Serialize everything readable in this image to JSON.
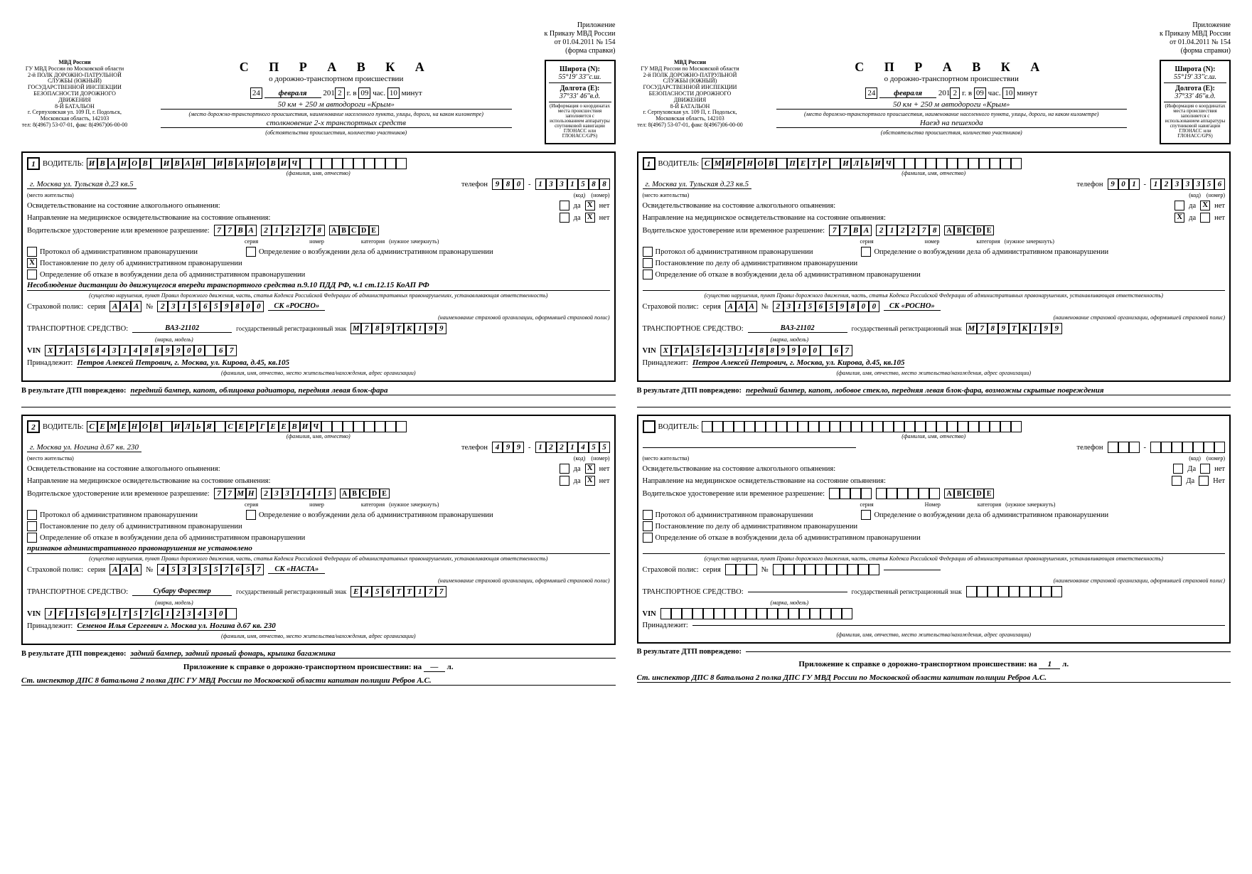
{
  "appendix": {
    "l1": "Приложение",
    "l2": "к Приказу МВД России",
    "l3": "от 01.04.2011 № 154",
    "l4": "(форма справки)"
  },
  "agency": {
    "l1": "МВД России",
    "l2": "ГУ МВД России по Московской области",
    "l3": "2-й ПОЛК ДОРОЖНО-ПАТРУЛЬНОЙ СЛУЖБЫ (ЮЖНЫЙ) ГОСУДАРСТВЕННОЙ ИНСПЕКЦИИ БЕЗОПАСНОСТИ ДОРОЖНОГО ДВИЖЕНИЯ",
    "l4": "8-Й БАТАЛЬОН",
    "l5": "г. Серпуховская ул. 109 П, г. Подольск, Московская область, 142103",
    "l6": "тел: 8(4967) 53-07-01, факс 8(4967)06-00-00"
  },
  "title": {
    "big": "С П Р А В К А",
    "sub": "о дорожно-транспортном происшествии"
  },
  "date": {
    "day": "24",
    "month": "февраля",
    "year_pref": "201",
    "year_last": "2",
    "year_lbl": "г. в",
    "hour": "09",
    "hour_lbl": "час.",
    "min": "10",
    "min_lbl": "минут"
  },
  "location": "50 км + 250 м автодороги «Крым»",
  "loc_sub": "(место дорожно-транспортного происшествия, наименование населенного пункта, улицы, дороги, на каком километре)",
  "circumstances_a": "столкновение 2-х транспортных средств",
  "circumstances_b": "Наезд на пешехода",
  "circ_sub": "(обстоятельства происшествия, количество участников)",
  "coords": {
    "lat_lbl": "Широта (N):",
    "lat": "55°19' 33''с.ш.",
    "lon_lbl": "Долгота (E):",
    "lon": "37°33' 46''в.д.",
    "note": "(Информация о координатах места происшествия заполняется с использованием аппаратуры спутниковой навигации ГЛОНАСС или ГЛОНАСС/GPS)"
  },
  "labels": {
    "driver": "ВОДИТЕЛЬ:",
    "fio_sub": "(фамилия, имя, отчество)",
    "phone": "телефон",
    "addr_sub": "(место жительства)",
    "kod": "(код)",
    "nomer": "(номер)",
    "alc1": "Освидетельствование на состояние алкогольного опьянения:",
    "alc2": "Направление на медицинское освидетельствование на состояние опьянения:",
    "da": "да",
    "net": "нет",
    "Da": "Да",
    "Net": "Нет",
    "lic": "Водительское удостоверение или временное разрешение:",
    "seria": "серия",
    "nomer2": "номер",
    "nomer2c": "Номер",
    "cat": "категория",
    "cat_sub": "(нужное зачеркнуть)",
    "p1": "Протокол об административном правонарушении",
    "p2": "Постановление по делу об административном правонарушении",
    "p3": "Определение об отказе в возбуждении дела об административном правонарушении",
    "p4": "Определение о возбуждении дела об административном правонарушении",
    "viol_sub": "(существо нарушения, пункт Правил дорожного движения, часть, статья Кодекса Российской Федерации об административных правонарушениях, устанавливающая ответственность)",
    "ins": "Страховой полис:",
    "ins_ser": "серия",
    "ins_num": "№",
    "ins_co_sub": "(наименование страховой организации, оформившей страховой полис)",
    "veh": "ТРАНСПОРТНОЕ СРЕДСТВО:",
    "veh_sub": "(марка, модель)",
    "gos": "государственный регистрационный знак",
    "vin": "VIN",
    "own": "Принадлежит:",
    "own_sub": "(фамилия, имя, отчество, место жительства/нахождения, адрес организации)",
    "dmg": "В результате ДТП повреждено:",
    "attach": "Приложение к справке о дорожно-транспортном происшествии: на",
    "attach_n_a": "—",
    "attach_n_b": "1",
    "attach_end": "л.",
    "inspector": "Ст. инспектор ДПС 8 батальона  2 полка ДПС ГУ МВД России по Московской области капитан полиции Ребров А.С."
  },
  "doc_a": {
    "d1": {
      "num": "1",
      "name": "ИВАНОВ ИВАН ИВАНОВИЧ",
      "addr": "г. Москва ул. Тульская д.23 кв.5",
      "phone_code": "980",
      "phone_num": "1331588",
      "alc1_da": "",
      "alc1_net": "X",
      "alc2_da": "",
      "alc2_net": "X",
      "lic_ser": "77ВА",
      "lic_num": "212278",
      "lic_cat": "ABCDE",
      "chk_p1": "",
      "chk_p2": "X",
      "chk_p3": "",
      "chk_p4": "",
      "viol": "Несоблюдение дистанции до движущегося впереди транспортного средства п.9.10 ПДД РФ, ч.1 ст.12.15 КоАП РФ",
      "ins_ser": "ААА",
      "ins_num": "2315659800",
      "ins_co": "СК «РОСНО»",
      "veh": "ВАЗ-21102",
      "gos": "М789ТК199",
      "vin": "XTA564314889900 67",
      "owner": "Петров Алексей Петрович, г. Москва, ул. Кирова, д.45, кв.105",
      "damage": "передний бампер, капот, облицовка радиатора, передняя левая блок-фара"
    },
    "d2": {
      "num": "2",
      "name": "СЕМЕНОВ ИЛЬЯ СЕРГЕЕВИЧ",
      "addr": "г. Москва ул. Ногина д.67 кв. 230",
      "phone_code": "499",
      "phone_num": "1221455",
      "alc1_da": "",
      "alc1_net": "X",
      "alc2_da": "",
      "alc2_net": "X",
      "lic_ser": "77МН",
      "lic_num": "2331415",
      "lic_cat": "ABCDE",
      "chk_p1": "",
      "chk_p2": "",
      "chk_p3": "",
      "chk_p4": "",
      "viol": "признаков административного правонарушения не установлено",
      "ins_ser": "ААА",
      "ins_num": "4533557657",
      "ins_co": "СК «НАСТА»",
      "veh": "Субару Форестер",
      "gos": "Е456ТТ177",
      "vin": "JF1SG9LT57G123430",
      "owner": "Семенов Илья Сергеевич г. Москва ул. Ногина д.67 кв. 230",
      "damage": "задний бампер, задний правый фонарь, крышка багажника"
    }
  },
  "doc_b": {
    "d1": {
      "num": "1",
      "name": "СМИРНОВ ПЕТР ИЛЬИЧ",
      "addr": "г. Москва ул. Тульская д.23 кв.5",
      "phone_code": "901",
      "phone_num": "1233356",
      "alc1_da": "",
      "alc1_net": "X",
      "alc2_da": "X",
      "alc2_net": "",
      "lic_ser": "77ВА",
      "lic_num": "212278",
      "lic_cat": "ABCDE",
      "chk_p1": "",
      "chk_p2": "",
      "chk_p3": "",
      "chk_p4": "",
      "viol": "",
      "ins_ser": "ААА",
      "ins_num": "2315659800",
      "ins_co": "СК «РОСНО»",
      "veh": "ВАЗ-21102",
      "gos": "М789ТК199",
      "vin": "XTA564314889900 67",
      "owner": "Петров Алексей Петрович, г. Москва, ул. Кирова, д.45, кв.105",
      "damage": "передний бампер, капот, лобовое стекло, передняя левая блок-фара, возможны скрытые повреждения"
    },
    "d2": {
      "num": "",
      "name": "",
      "addr": "",
      "phone_code": "",
      "phone_num": "",
      "alc1_da": "",
      "alc1_net": "",
      "alc2_da": "",
      "alc2_net": "",
      "lic_ser": "",
      "lic_num": "",
      "lic_cat": "ABCDE",
      "chk_p1": "",
      "chk_p2": "",
      "chk_p3": "",
      "chk_p4": "",
      "viol": "",
      "ins_ser": "",
      "ins_num": "",
      "ins_co": "",
      "veh": "",
      "gos": "",
      "vin": "",
      "owner": "",
      "damage": ""
    }
  }
}
